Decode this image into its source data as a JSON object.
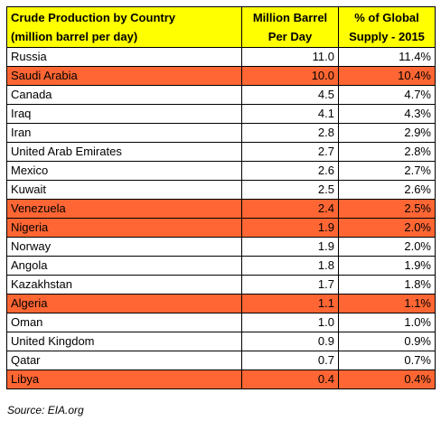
{
  "header": {
    "country_line1": "Crude Production by Country",
    "country_line2": "(million barrel per day)",
    "mbd_line1": "Million Barrel",
    "mbd_line2": "Per Day",
    "pct_line1": "% of Global",
    "pct_line2": "Supply - 2015"
  },
  "highlight_color": "#ff6633",
  "header_color": "#ffff00",
  "rows": [
    {
      "country": "Russia",
      "mbd": "11.0",
      "pct": "11.4%",
      "highlight": false
    },
    {
      "country": "Saudi Arabia",
      "mbd": "10.0",
      "pct": "10.4%",
      "highlight": true
    },
    {
      "country": "Canada",
      "mbd": "4.5",
      "pct": "4.7%",
      "highlight": false
    },
    {
      "country": "Iraq",
      "mbd": "4.1",
      "pct": "4.3%",
      "highlight": false
    },
    {
      "country": "Iran",
      "mbd": "2.8",
      "pct": "2.9%",
      "highlight": false
    },
    {
      "country": "United Arab Emirates",
      "mbd": "2.7",
      "pct": "2.8%",
      "highlight": false
    },
    {
      "country": "Mexico",
      "mbd": "2.6",
      "pct": "2.7%",
      "highlight": false
    },
    {
      "country": "Kuwait",
      "mbd": "2.5",
      "pct": "2.6%",
      "highlight": false
    },
    {
      "country": "Venezuela",
      "mbd": "2.4",
      "pct": "2.5%",
      "highlight": true
    },
    {
      "country": "Nigeria",
      "mbd": "1.9",
      "pct": "2.0%",
      "highlight": true
    },
    {
      "country": "Norway",
      "mbd": "1.9",
      "pct": "2.0%",
      "highlight": false
    },
    {
      "country": "Angola",
      "mbd": "1.8",
      "pct": "1.9%",
      "highlight": false
    },
    {
      "country": "Kazakhstan",
      "mbd": "1.7",
      "pct": "1.8%",
      "highlight": false
    },
    {
      "country": "Algeria",
      "mbd": "1.1",
      "pct": "1.1%",
      "highlight": true
    },
    {
      "country": "Oman",
      "mbd": "1.0",
      "pct": "1.0%",
      "highlight": false
    },
    {
      "country": "United Kingdom",
      "mbd": "0.9",
      "pct": "0.9%",
      "highlight": false
    },
    {
      "country": "Qatar",
      "mbd": "0.7",
      "pct": "0.7%",
      "highlight": false
    },
    {
      "country": "Libya",
      "mbd": "0.4",
      "pct": "0.4%",
      "highlight": true
    }
  ],
  "source": "Source: EIA.org"
}
